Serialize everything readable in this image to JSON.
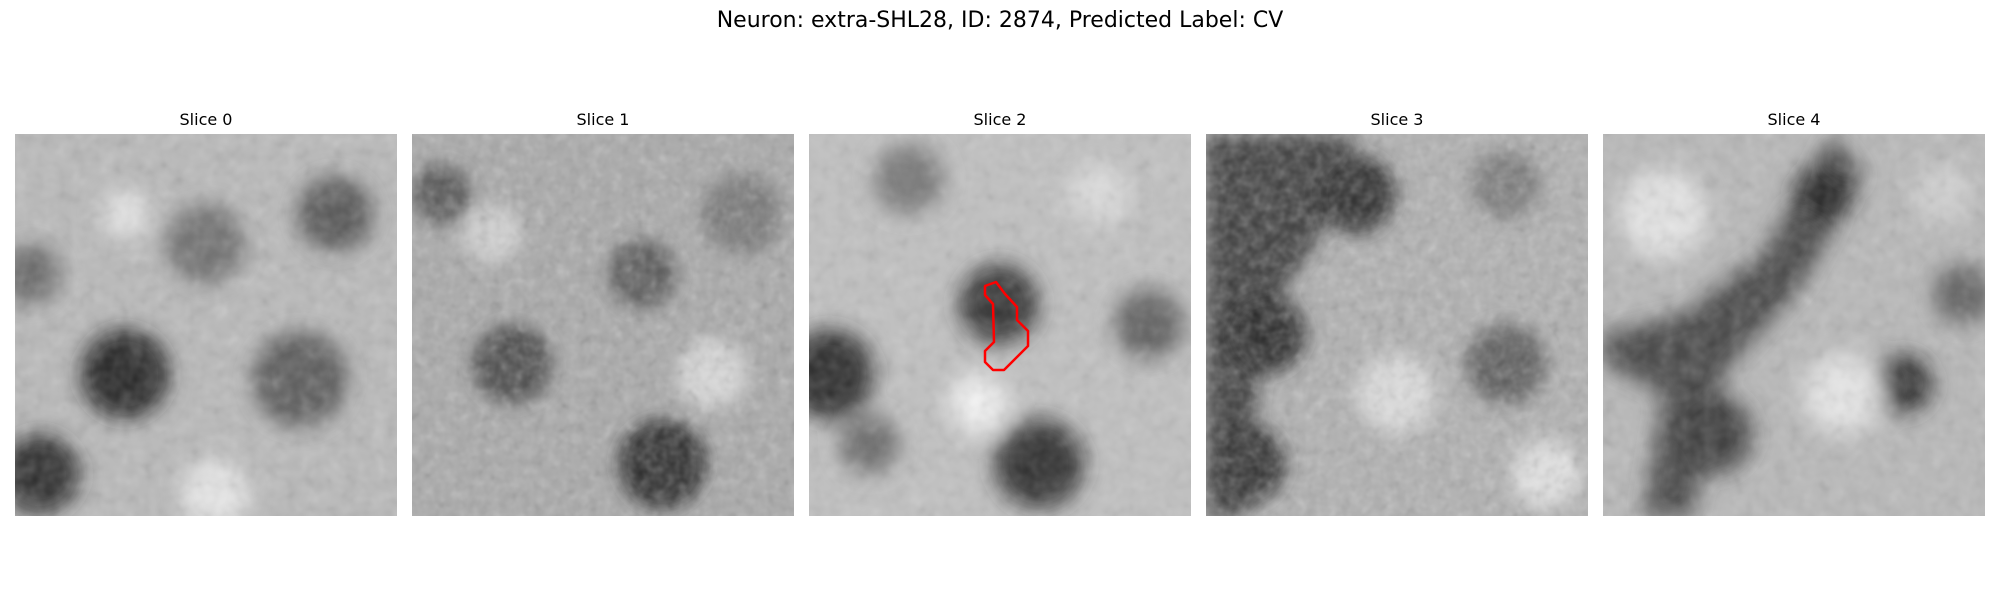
{
  "title": "Neuron: extra-SHL28, ID: 2874, Predicted Label: CV",
  "panels": [
    {
      "label": "Slice 0"
    },
    {
      "label": "Slice 1"
    },
    {
      "label": "Slice 2",
      "has_outline": true
    },
    {
      "label": "Slice 3"
    },
    {
      "label": "Slice 4"
    }
  ],
  "outline_color": "#ff0000"
}
